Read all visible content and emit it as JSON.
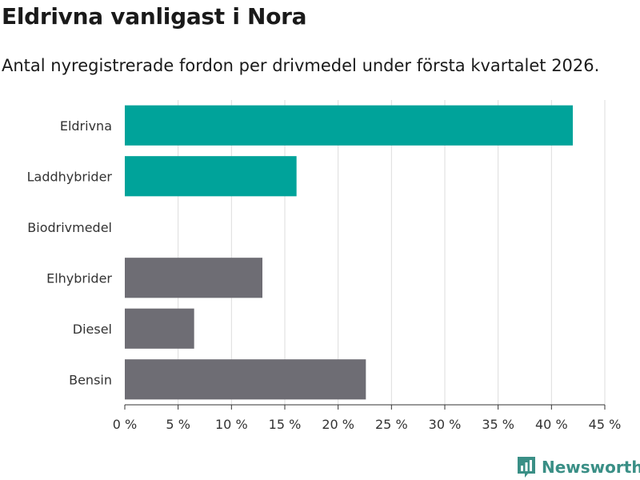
{
  "title": "Eldrivna vanligast i Nora",
  "subtitle": "Antal nyregistrerade fordon per drivmedel under första kvartalet 2026.",
  "brand": "Newsworthy",
  "colors": {
    "highlight": "#00a39a",
    "base": "#6e6d74",
    "grid": "#dddddd",
    "brand": "#3a8f86"
  },
  "chart_data": {
    "type": "bar",
    "orientation": "horizontal",
    "categories": [
      "Eldrivna",
      "Laddhybrider",
      "Biodrivmedel",
      "Elhybrider",
      "Diesel",
      "Bensin"
    ],
    "values": [
      42,
      16.1,
      0,
      12.9,
      6.5,
      22.6
    ],
    "highlight": [
      true,
      true,
      false,
      false,
      false,
      false
    ],
    "unit": "%",
    "xlim": [
      0,
      45
    ],
    "xticks": [
      0,
      5,
      10,
      15,
      20,
      25,
      30,
      35,
      40,
      45
    ],
    "xtick_labels": [
      "0 %",
      "5 %",
      "10 %",
      "15 %",
      "20 %",
      "25 %",
      "30 %",
      "35 %",
      "40 %",
      "45 %"
    ],
    "grid": true,
    "xlabel": "",
    "ylabel": ""
  }
}
